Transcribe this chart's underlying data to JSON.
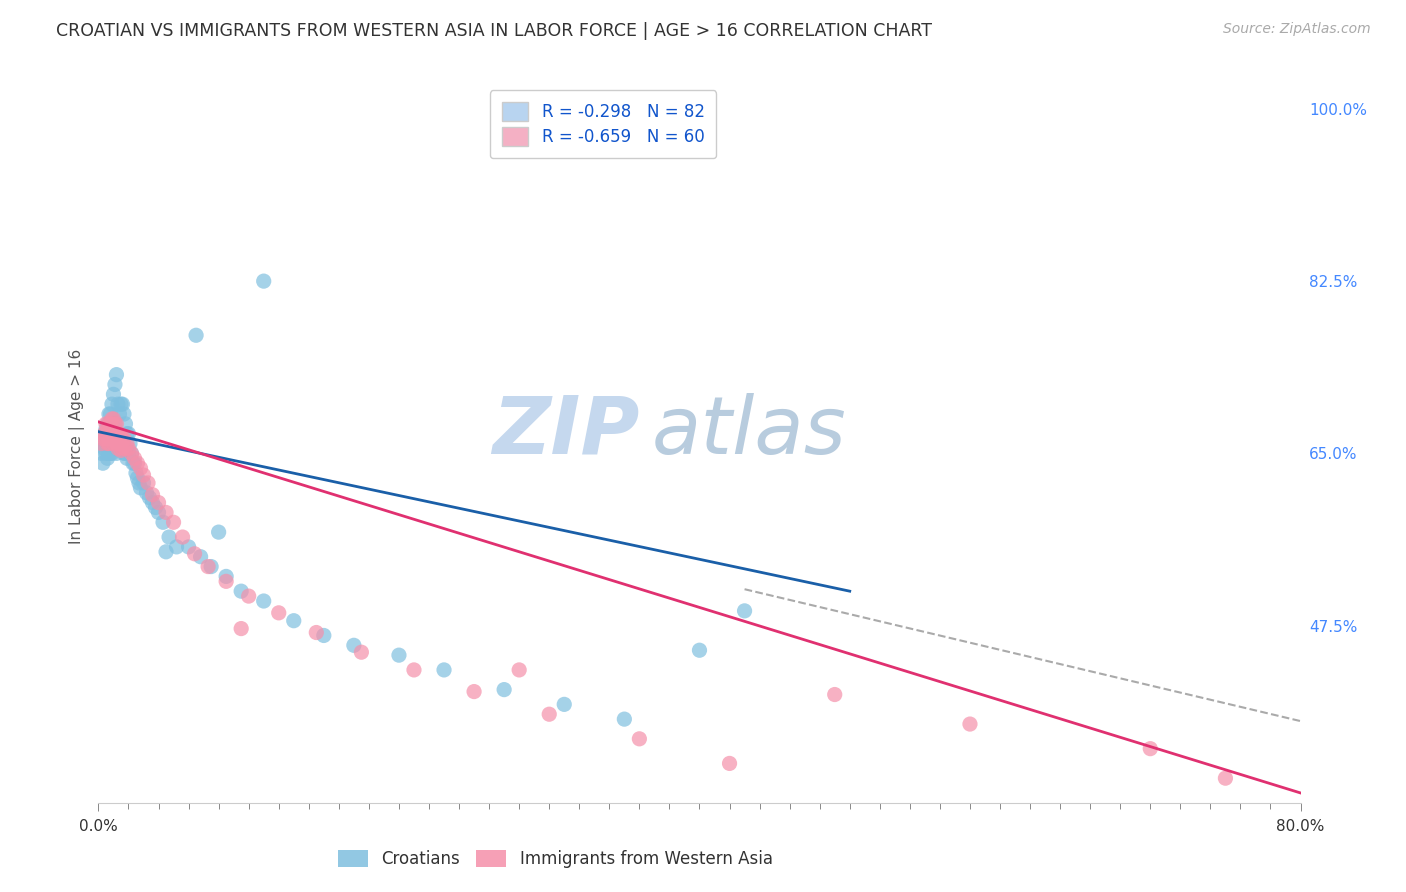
{
  "title": "CROATIAN VS IMMIGRANTS FROM WESTERN ASIA IN LABOR FORCE | AGE > 16 CORRELATION CHART",
  "source_text": "Source: ZipAtlas.com",
  "ylabel": "In Labor Force | Age > 16",
  "right_yticks": [
    "100.0%",
    "82.5%",
    "65.0%",
    "47.5%"
  ],
  "right_ytick_vals": [
    1.0,
    0.825,
    0.65,
    0.475
  ],
  "watermark_zip": "ZIP",
  "watermark_atlas": "atlas",
  "legend_labels": [
    "Croatians",
    "Immigrants from Western Asia"
  ],
  "blue_scatter_x": [
    0.002,
    0.003,
    0.003,
    0.004,
    0.004,
    0.005,
    0.005,
    0.005,
    0.006,
    0.006,
    0.006,
    0.007,
    0.007,
    0.007,
    0.008,
    0.008,
    0.008,
    0.009,
    0.009,
    0.009,
    0.01,
    0.01,
    0.01,
    0.011,
    0.011,
    0.011,
    0.012,
    0.012,
    0.012,
    0.013,
    0.013,
    0.014,
    0.014,
    0.015,
    0.015,
    0.016,
    0.016,
    0.017,
    0.017,
    0.018,
    0.018,
    0.019,
    0.019,
    0.02,
    0.02,
    0.021,
    0.022,
    0.023,
    0.024,
    0.025,
    0.026,
    0.027,
    0.028,
    0.03,
    0.032,
    0.034,
    0.036,
    0.038,
    0.04,
    0.043,
    0.047,
    0.052,
    0.06,
    0.068,
    0.075,
    0.085,
    0.095,
    0.11,
    0.13,
    0.15,
    0.17,
    0.2,
    0.23,
    0.27,
    0.31,
    0.35,
    0.4,
    0.43,
    0.11,
    0.065,
    0.08,
    0.045
  ],
  "blue_scatter_y": [
    0.65,
    0.64,
    0.66,
    0.655,
    0.67,
    0.66,
    0.65,
    0.675,
    0.665,
    0.68,
    0.645,
    0.67,
    0.69,
    0.65,
    0.69,
    0.665,
    0.65,
    0.7,
    0.66,
    0.65,
    0.71,
    0.67,
    0.655,
    0.72,
    0.68,
    0.66,
    0.73,
    0.665,
    0.65,
    0.7,
    0.655,
    0.69,
    0.66,
    0.7,
    0.665,
    0.7,
    0.66,
    0.69,
    0.65,
    0.68,
    0.65,
    0.67,
    0.645,
    0.67,
    0.65,
    0.66,
    0.65,
    0.64,
    0.64,
    0.63,
    0.625,
    0.62,
    0.615,
    0.62,
    0.61,
    0.605,
    0.6,
    0.595,
    0.59,
    0.58,
    0.565,
    0.555,
    0.555,
    0.545,
    0.535,
    0.525,
    0.51,
    0.5,
    0.48,
    0.465,
    0.455,
    0.445,
    0.43,
    0.41,
    0.395,
    0.38,
    0.45,
    0.49,
    0.825,
    0.77,
    0.57,
    0.55
  ],
  "pink_scatter_x": [
    0.002,
    0.003,
    0.004,
    0.005,
    0.005,
    0.006,
    0.006,
    0.007,
    0.007,
    0.008,
    0.008,
    0.009,
    0.009,
    0.01,
    0.01,
    0.011,
    0.011,
    0.012,
    0.012,
    0.013,
    0.013,
    0.014,
    0.014,
    0.015,
    0.015,
    0.016,
    0.016,
    0.017,
    0.018,
    0.019,
    0.02,
    0.022,
    0.024,
    0.026,
    0.028,
    0.03,
    0.033,
    0.036,
    0.04,
    0.045,
    0.05,
    0.056,
    0.064,
    0.073,
    0.085,
    0.1,
    0.12,
    0.145,
    0.175,
    0.21,
    0.25,
    0.3,
    0.36,
    0.42,
    0.49,
    0.58,
    0.7,
    0.75,
    0.28,
    0.095
  ],
  "pink_scatter_y": [
    0.66,
    0.665,
    0.67,
    0.665,
    0.68,
    0.675,
    0.66,
    0.68,
    0.66,
    0.68,
    0.665,
    0.685,
    0.665,
    0.685,
    0.66,
    0.68,
    0.665,
    0.68,
    0.66,
    0.67,
    0.655,
    0.67,
    0.66,
    0.668,
    0.653,
    0.665,
    0.655,
    0.665,
    0.655,
    0.66,
    0.655,
    0.65,
    0.645,
    0.64,
    0.635,
    0.628,
    0.62,
    0.608,
    0.6,
    0.59,
    0.58,
    0.565,
    0.548,
    0.535,
    0.52,
    0.505,
    0.488,
    0.468,
    0.448,
    0.43,
    0.408,
    0.385,
    0.36,
    0.335,
    0.405,
    0.375,
    0.35,
    0.32,
    0.43,
    0.472
  ],
  "blue_line_x": [
    0.0,
    0.5
  ],
  "blue_line_y": [
    0.672,
    0.51
  ],
  "pink_line_x": [
    0.0,
    0.8
  ],
  "pink_line_y": [
    0.682,
    0.305
  ],
  "dashed_line_x": [
    0.43,
    0.8
  ],
  "dashed_line_y": [
    0.512,
    0.378
  ],
  "xlim": [
    0.0,
    0.8
  ],
  "ylim": [
    0.295,
    1.02
  ],
  "blue_color": "#7fbfdf",
  "pink_color": "#f590aa",
  "blue_line_color": "#1a5fa8",
  "pink_line_color": "#e03070",
  "dashed_color": "#aaaaaa",
  "grid_color": "#cccccc",
  "title_color": "#333333",
  "right_tick_color": "#4488ff",
  "watermark_zip_color": "#c5d8ee",
  "watermark_atlas_color": "#b8ccde",
  "background_color": "#ffffff",
  "xtick_minor_count": 40,
  "xtick_major_labels": [
    "0.0%",
    "80.0%"
  ]
}
